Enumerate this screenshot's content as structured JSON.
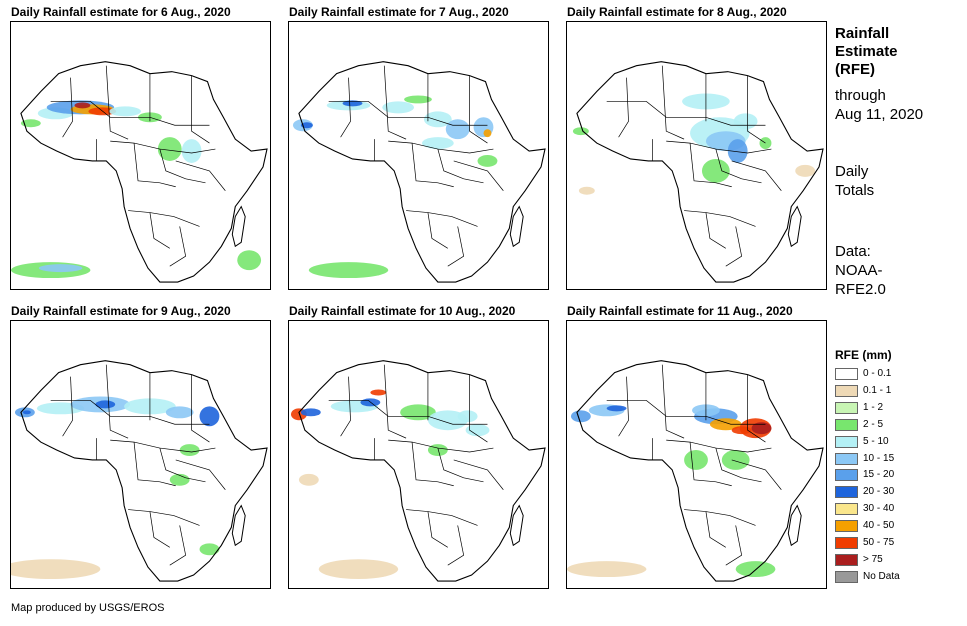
{
  "panels": [
    {
      "title": "Daily Rainfall estimate for 6 Aug., 2020"
    },
    {
      "title": "Daily Rainfall estimate for 7 Aug., 2020"
    },
    {
      "title": "Daily Rainfall estimate for 8 Aug., 2020"
    },
    {
      "title": "Daily Rainfall estimate for 9 Aug., 2020"
    },
    {
      "title": "Daily Rainfall estimate for 10 Aug., 2020"
    },
    {
      "title": "Daily Rainfall estimate for 11 Aug., 2020"
    }
  ],
  "sidebar": {
    "title_line1": "Rainfall",
    "title_line2": "Estimate",
    "title_line3": "(RFE)",
    "through_line1": "through",
    "through_line2": "Aug 11, 2020",
    "totals_line1": "Daily",
    "totals_line2": "Totals",
    "data_line1": "Data:",
    "data_line2": "NOAA-",
    "data_line3": "RFE2.0"
  },
  "legend": {
    "title": "RFE (mm)",
    "items": [
      {
        "label": "0 - 0.1",
        "color": "#ffffff"
      },
      {
        "label": "0.1 - 1",
        "color": "#eed9b6"
      },
      {
        "label": "1 - 2",
        "color": "#c8f5b4"
      },
      {
        "label": "2 - 5",
        "color": "#78e66e"
      },
      {
        "label": "5 - 10",
        "color": "#b4f0f5"
      },
      {
        "label": "10 - 15",
        "color": "#8cc8f5"
      },
      {
        "label": "15 - 20",
        "color": "#5aa0eb"
      },
      {
        "label": "20 - 30",
        "color": "#1e64dc"
      },
      {
        "label": "30 - 40",
        "color": "#fae68c"
      },
      {
        "label": "40 - 50",
        "color": "#f5a000"
      },
      {
        "label": "50 - 75",
        "color": "#f03c00"
      },
      {
        "label": "> 75",
        "color": "#aa1e1e"
      },
      {
        "label": "No Data",
        "color": "#999999"
      }
    ]
  },
  "credit": "Map produced by USGS/EROS"
}
